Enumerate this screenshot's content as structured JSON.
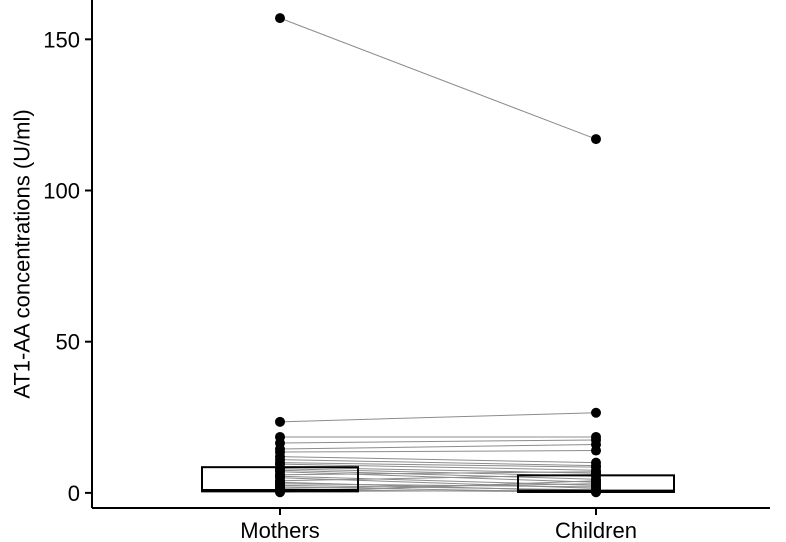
{
  "chart_data": {
    "type": "box-paired",
    "ylabel": "AT1-AA concentrations (U/ml)",
    "xlabel": "",
    "categories": [
      "Mothers",
      "Children"
    ],
    "yticks": [
      0,
      50,
      100,
      150
    ],
    "ylim": [
      -5,
      163
    ],
    "grid": false,
    "boxes": [
      {
        "category": "Mothers",
        "q1": 0.5,
        "median": 0.8,
        "q3": 8.5
      },
      {
        "category": "Children",
        "q1": 0.3,
        "median": 0.6,
        "q3": 5.8
      }
    ],
    "pairs": [
      {
        "mothers": 157,
        "children": 117
      },
      {
        "mothers": 23.5,
        "children": 26.5
      },
      {
        "mothers": 18.5,
        "children": 18.5
      },
      {
        "mothers": 16.5,
        "children": 17.5
      },
      {
        "mothers": 14.5,
        "children": 16.0
      },
      {
        "mothers": 13.5,
        "children": 14.0
      },
      {
        "mothers": 12.0,
        "children": 10.0
      },
      {
        "mothers": 11.0,
        "children": 9.0
      },
      {
        "mothers": 10.0,
        "children": 8.5
      },
      {
        "mothers": 9.5,
        "children": 7.5
      },
      {
        "mothers": 8.5,
        "children": 6.5
      },
      {
        "mothers": 8.0,
        "children": 5.5
      },
      {
        "mothers": 7.5,
        "children": 4.5
      },
      {
        "mothers": 7.0,
        "children": 3.5
      },
      {
        "mothers": 6.0,
        "children": 7.0
      },
      {
        "mothers": 5.5,
        "children": 2.5
      },
      {
        "mothers": 5.0,
        "children": 1.5
      },
      {
        "mothers": 4.0,
        "children": 6.0
      },
      {
        "mothers": 3.5,
        "children": 0.5
      },
      {
        "mothers": 3.0,
        "children": 2.0
      },
      {
        "mothers": 2.5,
        "children": 1.0
      },
      {
        "mothers": 2.0,
        "children": 0.2
      },
      {
        "mothers": 1.5,
        "children": 3.0
      },
      {
        "mothers": 1.0,
        "children": 0.3
      },
      {
        "mothers": 0.5,
        "children": 0.8
      },
      {
        "mothers": 0.2,
        "children": 4.0
      }
    ]
  }
}
